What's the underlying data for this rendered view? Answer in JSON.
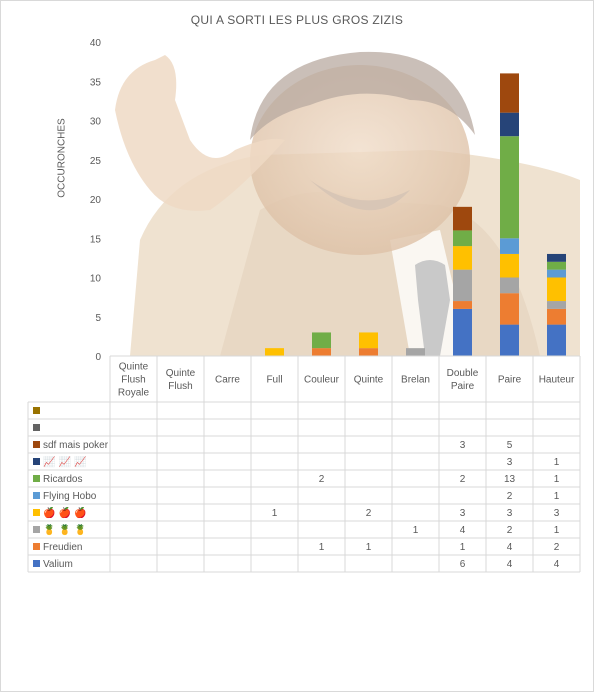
{
  "chart_data": {
    "type": "bar",
    "stacked": true,
    "title": "QUI A SORTI LES PLUS GROS ZIZIS",
    "ylabel": "OCCURONCHES",
    "xlabel": "",
    "ylim": [
      0,
      40
    ],
    "yticks": [
      "0",
      "5",
      "10",
      "15",
      "20",
      "25",
      "30",
      "35",
      "40"
    ],
    "grid": false,
    "legend": "table-below",
    "categories": [
      "Quinte Flush Royale",
      "Quinte Flush",
      "Carre",
      "Full",
      "Couleur",
      "Quinte",
      "Brelan",
      "Double Paire",
      "Paire",
      "Hauteur"
    ],
    "category_labels": [
      [
        "Quinte",
        "Flush",
        "Royale"
      ],
      [
        "Quinte",
        "Flush"
      ],
      [
        "Carre"
      ],
      [
        "Full"
      ],
      [
        "Couleur"
      ],
      [
        "Quinte"
      ],
      [
        "Brelan"
      ],
      [
        "Double",
        "Paire"
      ],
      [
        "Paire"
      ],
      [
        "Hauteur"
      ]
    ],
    "series": [
      {
        "name": "Valium",
        "color": "#4472c4",
        "values": [
          null,
          null,
          null,
          null,
          null,
          null,
          null,
          6,
          4,
          4
        ]
      },
      {
        "name": "Freudien",
        "color": "#ed7d31",
        "values": [
          null,
          null,
          null,
          null,
          1,
          1,
          null,
          1,
          4,
          2
        ]
      },
      {
        "name": "🍍 🍍 🍍",
        "color": "#a5a5a5",
        "values": [
          null,
          null,
          null,
          null,
          null,
          null,
          1,
          4,
          2,
          1
        ]
      },
      {
        "name": "🍎 🍎 🍎",
        "color": "#ffc000",
        "values": [
          null,
          null,
          null,
          1,
          null,
          2,
          null,
          3,
          3,
          3
        ]
      },
      {
        "name": "Flying Hobo",
        "color": "#5b9bd5",
        "values": [
          null,
          null,
          null,
          null,
          null,
          null,
          null,
          null,
          2,
          1
        ]
      },
      {
        "name": "Ricardos",
        "color": "#70ad47",
        "values": [
          null,
          null,
          null,
          null,
          2,
          null,
          null,
          2,
          13,
          1
        ]
      },
      {
        "name": "📈 📈 📈",
        "color": "#264478",
        "values": [
          null,
          null,
          null,
          null,
          null,
          null,
          null,
          null,
          3,
          1
        ]
      },
      {
        "name": "sdf mais poker",
        "color": "#9e480e",
        "values": [
          null,
          null,
          null,
          null,
          null,
          null,
          null,
          3,
          5,
          null
        ]
      },
      {
        "name": "",
        "color": "#636363",
        "values": [
          null,
          null,
          null,
          null,
          null,
          null,
          null,
          null,
          null,
          null
        ]
      },
      {
        "name": "",
        "color": "#997300",
        "values": [
          null,
          null,
          null,
          null,
          null,
          null,
          null,
          null,
          null,
          null
        ]
      }
    ]
  }
}
